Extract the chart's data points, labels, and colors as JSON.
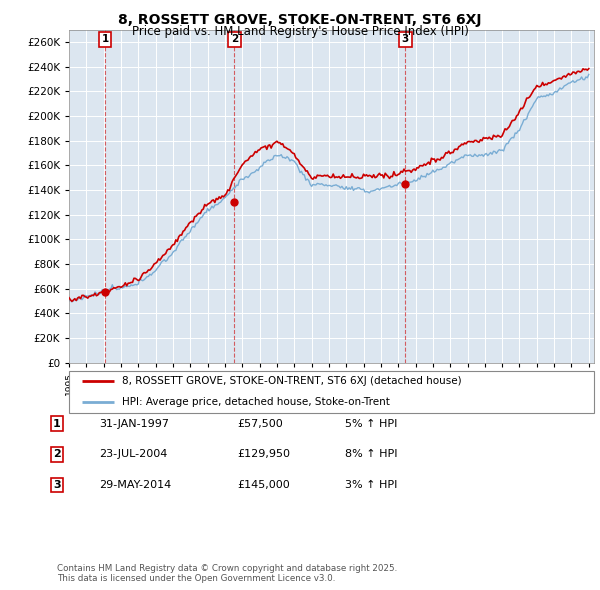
{
  "title": "8, ROSSETT GROVE, STOKE-ON-TRENT, ST6 6XJ",
  "subtitle": "Price paid vs. HM Land Registry's House Price Index (HPI)",
  "ylim": [
    0,
    270000
  ],
  "yticks": [
    0,
    20000,
    40000,
    60000,
    80000,
    100000,
    120000,
    140000,
    160000,
    180000,
    200000,
    220000,
    240000,
    260000
  ],
  "background_color": "#ffffff",
  "plot_bg_color": "#dce6f0",
  "grid_color": "#ffffff",
  "red_color": "#cc0000",
  "blue_color": "#7aadd4",
  "sale_markers": [
    {
      "year": 1997.08,
      "price": 57500,
      "label": "1"
    },
    {
      "year": 2004.55,
      "price": 129950,
      "label": "2"
    },
    {
      "year": 2014.41,
      "price": 145000,
      "label": "3"
    }
  ],
  "legend_entries": [
    "8, ROSSETT GROVE, STOKE-ON-TRENT, ST6 6XJ (detached house)",
    "HPI: Average price, detached house, Stoke-on-Trent"
  ],
  "table_rows": [
    {
      "num": "1",
      "date": "31-JAN-1997",
      "price": "£57,500",
      "pct": "5% ↑ HPI"
    },
    {
      "num": "2",
      "date": "23-JUL-2004",
      "price": "£129,950",
      "pct": "8% ↑ HPI"
    },
    {
      "num": "3",
      "date": "29-MAY-2014",
      "price": "£145,000",
      "pct": "3% ↑ HPI"
    }
  ],
  "footnote": "Contains HM Land Registry data © Crown copyright and database right 2025.\nThis data is licensed under the Open Government Licence v3.0."
}
